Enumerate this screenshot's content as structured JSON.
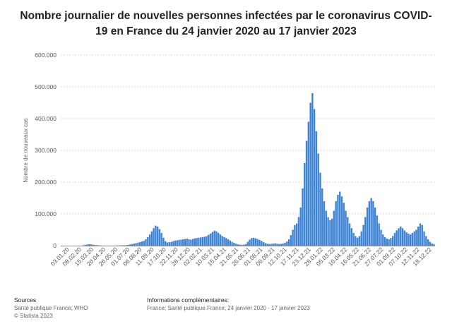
{
  "title": "Nombre journalier de nouvelles personnes infectées par le coronavirus COVID-19 en France du 24 janvier 2020 au 17 janvier 2023",
  "footer": {
    "sources_heading": "Sources",
    "sources_line1": "Santé publique France; WHO",
    "sources_line2": "© Statista 2023",
    "info_heading": "Informations complémentaires:",
    "info_line1": "France; Santé publique France; 24 janvier 2020 - 17 janvier 2023"
  },
  "colors": {
    "bar": "#3d84d6",
    "grid": "#d9d9d9"
  },
  "chart_data": {
    "type": "bar",
    "ylabel": "Nombre de nouveaux cas",
    "xlabel": "",
    "ylim": [
      0,
      600000
    ],
    "y_ticks": [
      "0",
      "100.000",
      "200.000",
      "300.000",
      "400.000",
      "500.000",
      "600.000"
    ],
    "x_ticks": [
      "03.01.20",
      "08.02.20",
      "15.03.20",
      "20.04.20",
      "26.05.20",
      "01.07.20",
      "06.08.20",
      "11.09.20",
      "17.10.20",
      "22.11.20",
      "28.12.20",
      "02.02.21",
      "10.03.21",
      "15.04.21",
      "21.05.21",
      "26.06.21",
      "01.08.21",
      "06.09.21",
      "12.10.21",
      "17.11.21",
      "23.12.21",
      "28.01.22",
      "05.03.22",
      "10.04.22",
      "16.05.22",
      "21.06.22",
      "27.07.22",
      "01.09.22",
      "07.10.22",
      "12.11.22",
      "18.12.22"
    ],
    "grid": true,
    "series": [
      {
        "values": [
          0,
          0,
          0,
          0,
          0,
          0,
          0,
          0,
          0,
          0,
          0,
          1000,
          2500,
          3500,
          4500,
          4000,
          3000,
          2000,
          1500,
          1000,
          600,
          400,
          300,
          200,
          200,
          300,
          300,
          400,
          500,
          700,
          800,
          1000,
          1200,
          1500,
          2500,
          4000,
          5000,
          6500,
          8000,
          9500,
          11000,
          13000,
          15000,
          20000,
          27000,
          35000,
          45000,
          55000,
          63000,
          60000,
          52000,
          40000,
          25000,
          14000,
          10000,
          11000,
          12000,
          14000,
          16000,
          17000,
          18000,
          19000,
          20000,
          21000,
          22000,
          20000,
          19000,
          21000,
          23000,
          24000,
          25000,
          26000,
          27000,
          28000,
          30000,
          34000,
          38000,
          43000,
          47000,
          45000,
          40000,
          35000,
          30000,
          27000,
          24000,
          20000,
          16000,
          12000,
          9000,
          6000,
          4000,
          3000,
          2500,
          3000,
          5000,
          12000,
          19000,
          24000,
          25000,
          23000,
          21000,
          18000,
          15000,
          11000,
          8000,
          6000,
          5000,
          5500,
          6500,
          7500,
          6000,
          5000,
          5500,
          7000,
          9000,
          13000,
          20000,
          33000,
          50000,
          65000,
          70000,
          90000,
          120000,
          180000,
          260000,
          330000,
          390000,
          450000,
          480000,
          430000,
          360000,
          290000,
          230000,
          180000,
          140000,
          110000,
          90000,
          80000,
          85000,
          110000,
          140000,
          160000,
          170000,
          155000,
          135000,
          110000,
          90000,
          70000,
          55000,
          40000,
          30000,
          25000,
          30000,
          45000,
          65000,
          90000,
          120000,
          140000,
          150000,
          140000,
          120000,
          95000,
          70000,
          50000,
          35000,
          27000,
          22000,
          20000,
          24000,
          30000,
          40000,
          48000,
          55000,
          60000,
          55000,
          48000,
          42000,
          38000,
          35000,
          40000,
          45000,
          50000,
          60000,
          70000,
          65000,
          45000,
          30000,
          20000,
          12000,
          7000,
          5000
        ]
      }
    ]
  }
}
